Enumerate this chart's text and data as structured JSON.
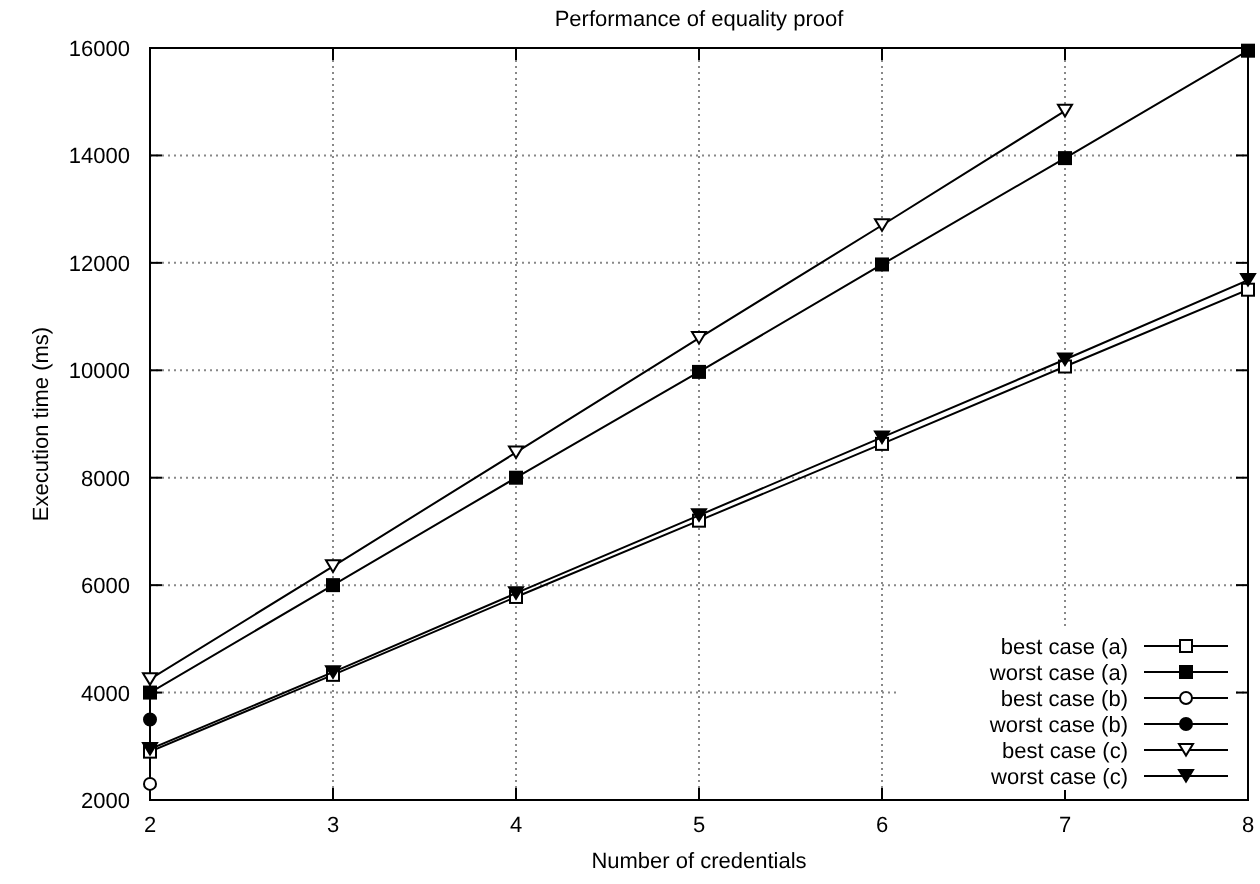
{
  "chart_data": {
    "type": "line",
    "title": "Performance of equality proof",
    "xlabel": "Number of credentials",
    "ylabel": "Execution time (ms)",
    "x": [
      2,
      3,
      4,
      5,
      6,
      7,
      8
    ],
    "xlim": [
      2,
      8
    ],
    "xticks": [
      2,
      3,
      4,
      5,
      6,
      7,
      8
    ],
    "ylim": [
      2000,
      16000
    ],
    "yticks": [
      2000,
      4000,
      6000,
      8000,
      10000,
      12000,
      14000,
      16000
    ],
    "grid": true,
    "legend": "bottom right",
    "line_style": "solid",
    "series": [
      {
        "name": "best case (a)",
        "color": "#000000",
        "marker": "square-open",
        "values": [
          2900,
          4330,
          5780,
          7200,
          8630,
          10070,
          11500
        ]
      },
      {
        "name": "worst case (a)",
        "color": "#000000",
        "marker": "square",
        "values": [
          4000,
          6000,
          8000,
          9970,
          11970,
          13950,
          15950
        ]
      },
      {
        "name": "best case (b)",
        "color": "#000000",
        "marker": "circle-open",
        "values": [
          2300,
          null,
          null,
          null,
          null,
          null,
          null
        ]
      },
      {
        "name": "worst case (b)",
        "color": "#000000",
        "marker": "circle",
        "values": [
          3500,
          null,
          null,
          null,
          null,
          null,
          null
        ]
      },
      {
        "name": "best case (c)",
        "color": "#000000",
        "marker": "triangle-open",
        "values": [
          4250,
          6350,
          8470,
          10600,
          12700,
          14830,
          null
        ]
      },
      {
        "name": "worst case (c)",
        "color": "#000000",
        "marker": "triangle",
        "values": [
          2950,
          4380,
          5850,
          7300,
          8750,
          10200,
          11680
        ]
      }
    ]
  }
}
